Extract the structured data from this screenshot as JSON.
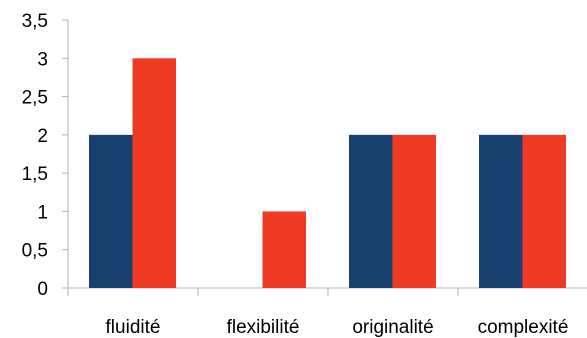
{
  "chart_data": {
    "type": "bar",
    "categories": [
      "fluidité",
      "flexibilité",
      "originalité",
      "complexité"
    ],
    "series": [
      {
        "values": [
          2,
          0,
          2,
          2
        ],
        "color": "#17406f"
      },
      {
        "values": [
          3,
          1,
          2,
          2
        ],
        "color": "#ef3b24"
      }
    ],
    "y_ticks": [
      "0",
      "0,5",
      "1",
      "1,5",
      "2",
      "2,5",
      "3",
      "3,5"
    ],
    "ylim": [
      0,
      3.5
    ],
    "grid": false,
    "legend": "none",
    "axis_color": "#b3b3b3"
  }
}
